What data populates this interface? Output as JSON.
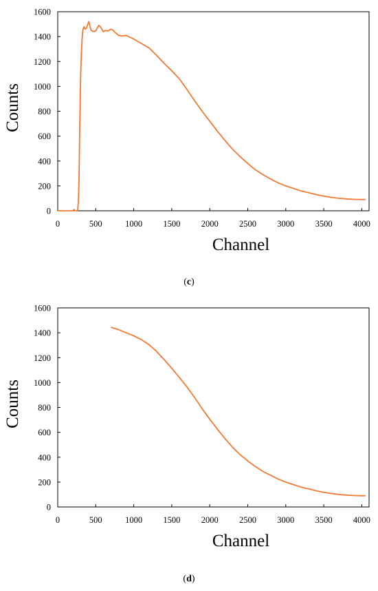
{
  "chart_data": [
    {
      "type": "line",
      "panel_label": "c",
      "xlabel": "Channel",
      "ylabel": "Counts",
      "xlim": [
        0,
        4096
      ],
      "ylim": [
        0,
        1600
      ],
      "xticks": [
        "0",
        "500",
        "1000",
        "1500",
        "2000",
        "2500",
        "3000",
        "3500",
        "4000"
      ],
      "yticks": [
        "0",
        "200",
        "400",
        "600",
        "800",
        "1000",
        "1200",
        "1400",
        "1600"
      ],
      "grid": false,
      "line_color": "#F07A30",
      "series": [
        {
          "x": [
            0,
            200,
            215,
            228,
            240,
            255,
            262,
            270,
            280,
            290,
            300,
            310,
            320,
            330,
            345,
            360,
            380,
            395,
            410,
            420,
            440,
            470,
            500,
            520,
            540,
            560,
            580,
            600,
            630,
            660,
            700,
            730,
            760,
            800,
            850,
            900,
            950,
            1000,
            1100,
            1200,
            1300,
            1400,
            1500,
            1600,
            1700,
            1800,
            1900,
            2000,
            2100,
            2200,
            2300,
            2400,
            2500,
            2600,
            2700,
            2800,
            2900,
            3000,
            3100,
            3200,
            3300,
            3400,
            3500,
            3600,
            3700,
            3800,
            3900,
            4000,
            4050
          ],
          "y": [
            0,
            0,
            10,
            0,
            0,
            0,
            5,
            60,
            250,
            700,
            1050,
            1250,
            1380,
            1450,
            1480,
            1460,
            1470,
            1500,
            1520,
            1490,
            1450,
            1440,
            1445,
            1470,
            1490,
            1480,
            1460,
            1440,
            1450,
            1445,
            1460,
            1450,
            1430,
            1410,
            1405,
            1410,
            1395,
            1380,
            1345,
            1310,
            1250,
            1185,
            1125,
            1060,
            975,
            885,
            800,
            720,
            640,
            565,
            495,
            435,
            380,
            330,
            290,
            255,
            225,
            200,
            180,
            160,
            145,
            130,
            118,
            108,
            100,
            95,
            92,
            90,
            90
          ]
        }
      ]
    },
    {
      "type": "line",
      "panel_label": "d",
      "xlabel": "Channel",
      "ylabel": "Counts",
      "xlim": [
        0,
        4096
      ],
      "ylim": [
        0,
        1600
      ],
      "xticks": [
        "0",
        "500",
        "1000",
        "1500",
        "2000",
        "2500",
        "3000",
        "3500",
        "4000"
      ],
      "yticks": [
        "0",
        "200",
        "400",
        "600",
        "800",
        "1000",
        "1200",
        "1400",
        "1600"
      ],
      "grid": false,
      "line_color": "#F07A30",
      "series": [
        {
          "x": [
            700,
            800,
            900,
            1000,
            1100,
            1200,
            1300,
            1400,
            1500,
            1600,
            1700,
            1800,
            1900,
            2000,
            2100,
            2200,
            2300,
            2400,
            2500,
            2600,
            2700,
            2800,
            2900,
            3000,
            3100,
            3200,
            3300,
            3400,
            3500,
            3600,
            3700,
            3800,
            3900,
            4000,
            4050
          ],
          "y": [
            1445,
            1425,
            1400,
            1375,
            1345,
            1305,
            1250,
            1185,
            1115,
            1040,
            965,
            880,
            790,
            705,
            625,
            550,
            480,
            420,
            370,
            325,
            285,
            255,
            225,
            200,
            180,
            160,
            145,
            130,
            118,
            108,
            100,
            95,
            92,
            90,
            90
          ]
        }
      ]
    }
  ],
  "captions": [
    "c",
    "d"
  ]
}
